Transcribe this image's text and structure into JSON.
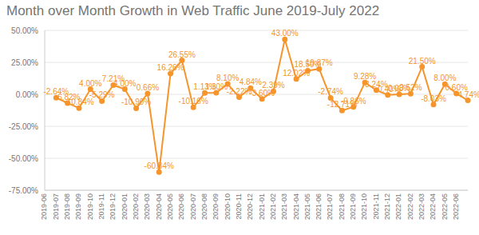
{
  "chart_data": {
    "type": "line",
    "title": "Month over Month Growth in Web Traffic June 2019-July 2022",
    "categories": [
      "2019-06",
      "2019-07",
      "2019-08",
      "2019-09",
      "2019-10",
      "2019-11",
      "2019-12",
      "2020-01",
      "2020-02",
      "2020-03",
      "2020-04",
      "2020-05",
      "2020-06",
      "2020-07",
      "2020-08",
      "2020-09",
      "2020-10",
      "2020-11",
      "2020-12",
      "2021-01",
      "2021-02",
      "2021-03",
      "2021-04",
      "2021-05",
      "2021-06",
      "2021-07",
      "2021-08",
      "2021-09",
      "2021-10",
      "2021-11",
      "2021-12",
      "2022-01",
      "2022-02",
      "2022-03",
      "2022-04",
      "2022-05",
      "2022-06",
      null
    ],
    "values": [
      null,
      -2.64,
      -6.82,
      -10.84,
      4.0,
      -5.29,
      7.21,
      4.0,
      -10.9,
      0.66,
      -60.84,
      16.26,
      26.55,
      -10.16,
      1.13,
      1.3,
      8.1,
      -2.22,
      4.84,
      -3.6,
      2.39,
      43.0,
      12.02,
      18.5,
      19.87,
      -2.74,
      -12.71,
      -9.86,
      9.28,
      3.24,
      -0.4,
      0.03,
      0.52,
      21.5,
      -8.03,
      8.0,
      0.6,
      -4.74
    ],
    "value_labels": [
      null,
      "-2.64%",
      "-6.82%",
      "-10.84%",
      "4.00%",
      "-5.29%",
      "7.21%",
      "4.00%",
      "-10.90%",
      "0.66%",
      "-60.84%",
      "16.26%",
      "26.55%",
      "-10.16%",
      "1.13%",
      "1.30%",
      "8.10%",
      "-2.22%",
      "4.84%",
      "-3.60%",
      "2.39%",
      "43.00%",
      "12.02%",
      "18.50%",
      "19.87%",
      "-2.74%",
      "-12.71%",
      "-9.86%",
      "9.28%",
      "3.24%",
      "-0.40%",
      "0.03%",
      "0.52%",
      "21.50%",
      "-8.03%",
      "8.00%",
      "0.60%",
      "-4.74%"
    ],
    "color": "#f5952b",
    "marker": "circle",
    "data_labels": true,
    "grid": true,
    "ylim": [
      -75,
      50
    ],
    "yticks": [
      {
        "value": -75,
        "label": "-75.00%"
      },
      {
        "value": -50,
        "label": "-50.00%"
      },
      {
        "value": -25,
        "label": "-25.00%"
      },
      {
        "value": 0,
        "label": "0.00%"
      },
      {
        "value": 25,
        "label": "25.00%"
      },
      {
        "value": 50,
        "label": "50.00%"
      }
    ]
  }
}
